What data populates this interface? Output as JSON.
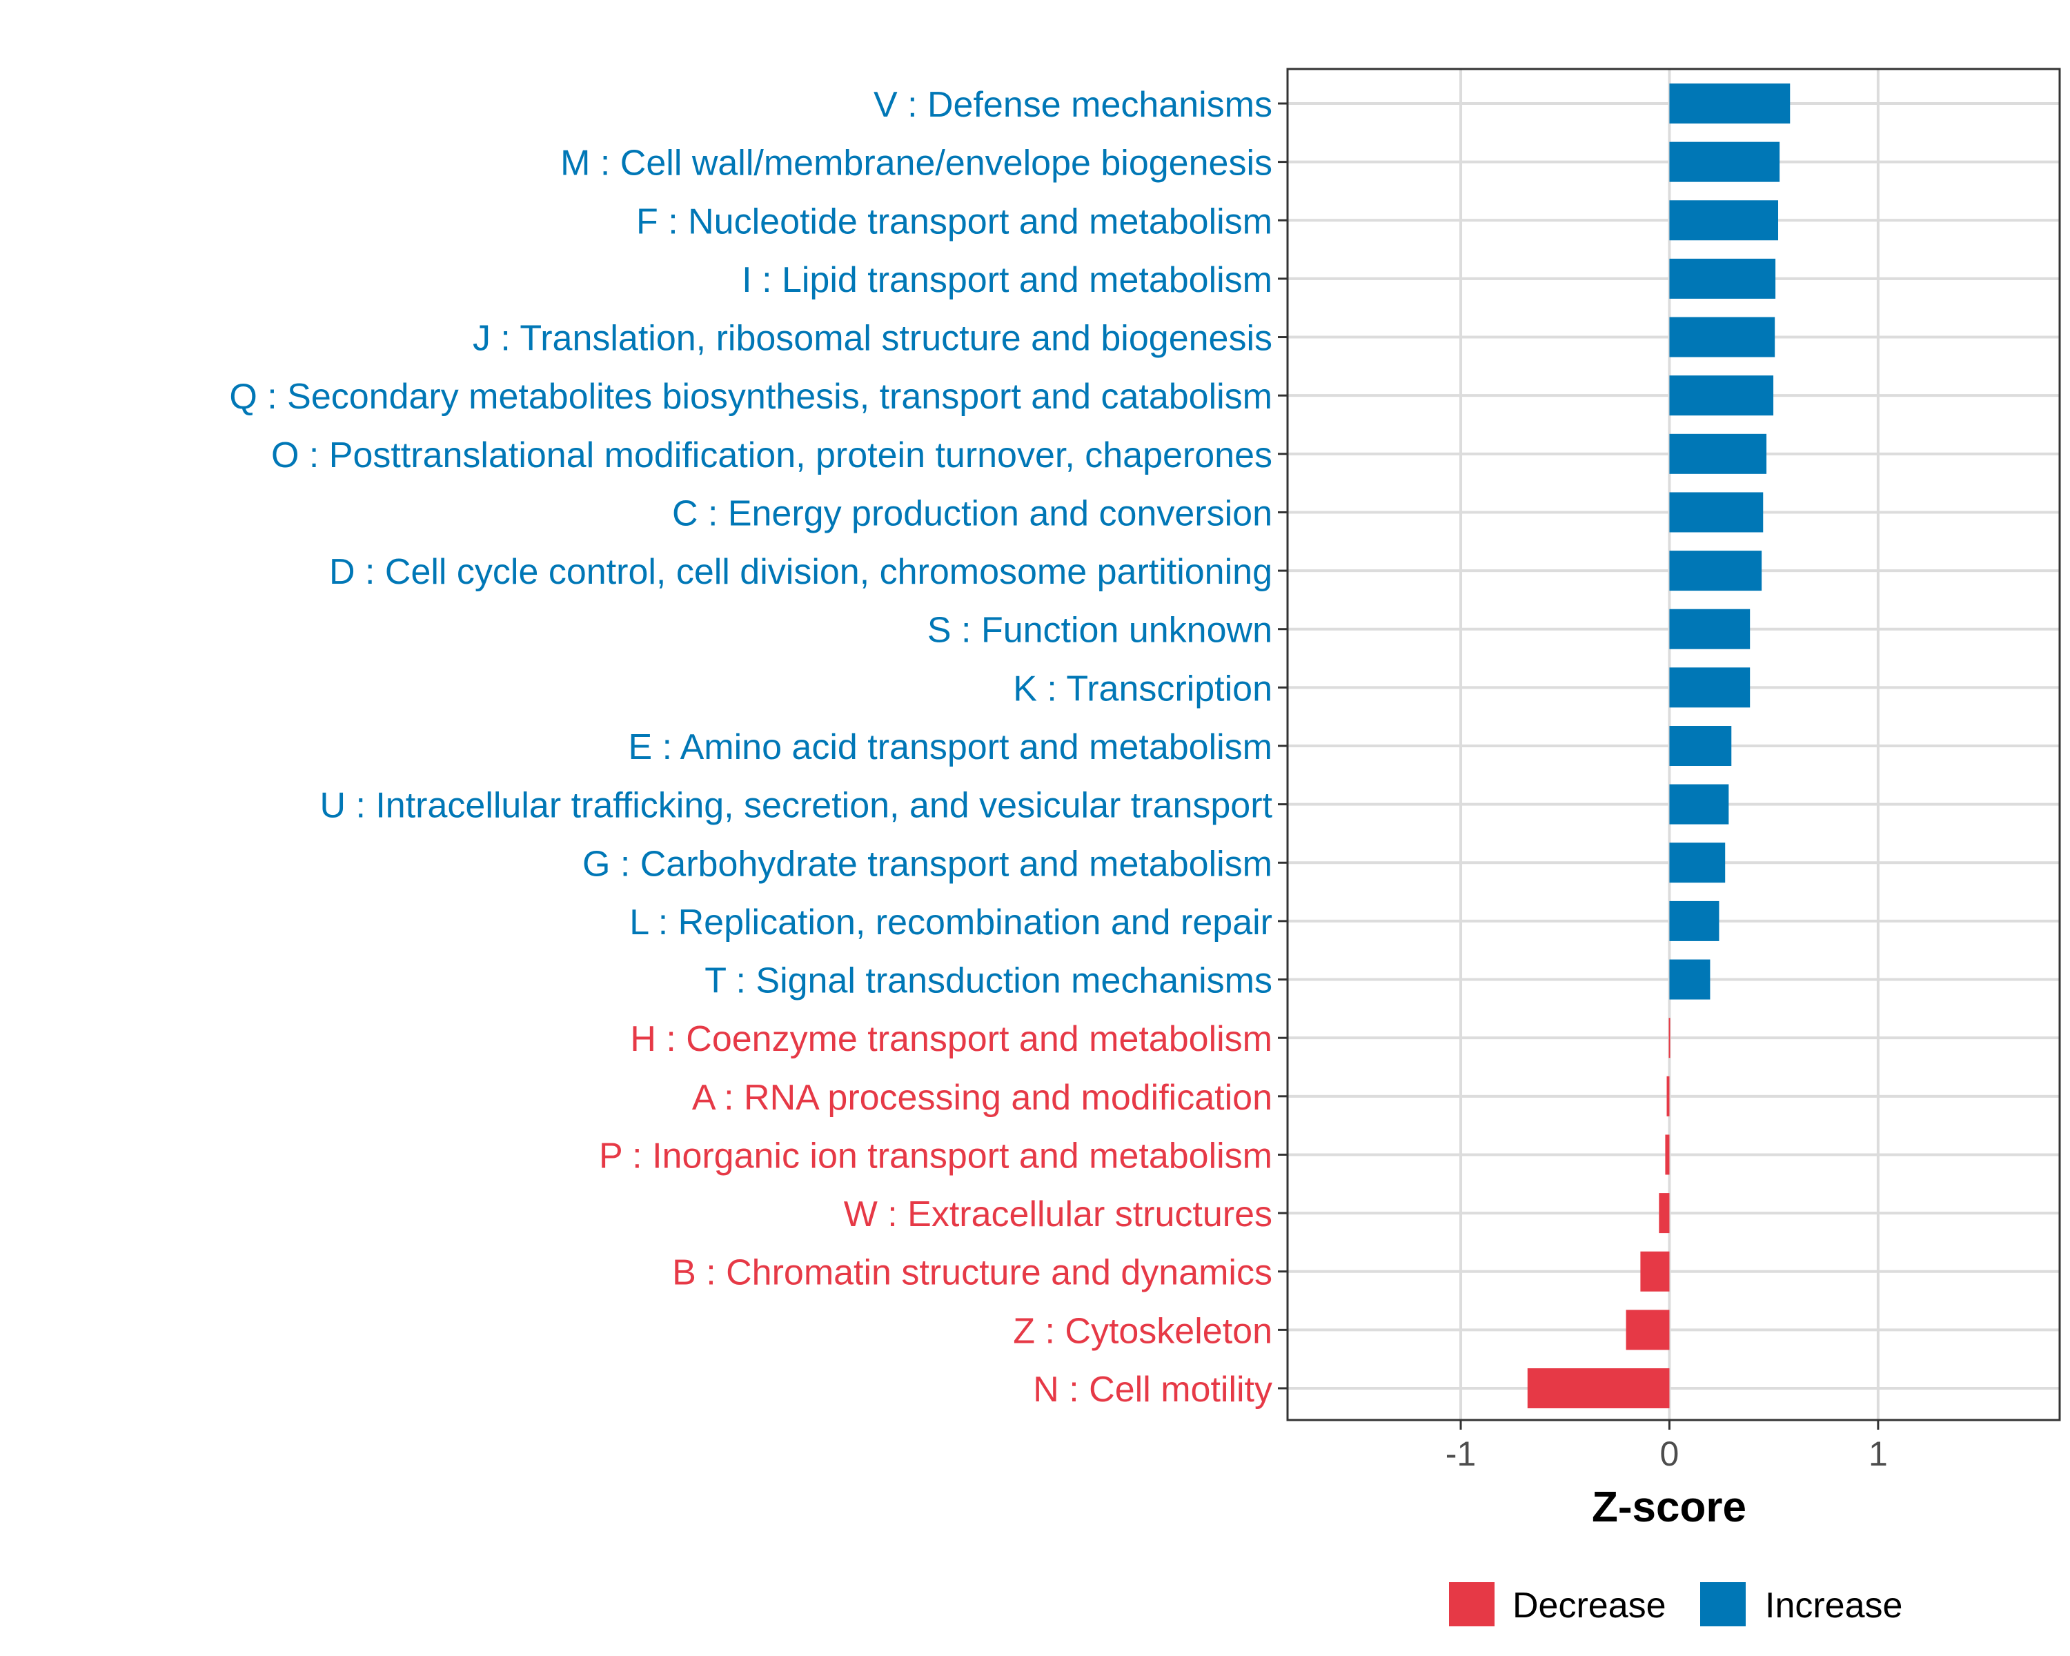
{
  "chart_data": {
    "type": "bar",
    "orientation": "horizontal",
    "title": "",
    "xlabel": "Z-score",
    "ylabel": "",
    "xlim": [
      -1.83,
      1.87
    ],
    "xticks": [
      -1,
      0,
      1
    ],
    "xtick_labels": [
      "-1",
      "0",
      "1"
    ],
    "grid": true,
    "legend": {
      "position": "bottom",
      "entries": [
        {
          "label": "Decrease",
          "color": "#E63946"
        },
        {
          "label": "Increase",
          "color": "#0077B6"
        }
      ]
    },
    "categories": [
      "V : Defense mechanisms",
      "M : Cell wall/membrane/envelope biogenesis",
      "F : Nucleotide transport and metabolism",
      "I : Lipid transport and metabolism",
      "J : Translation, ribosomal structure and biogenesis",
      "Q : Secondary metabolites biosynthesis, transport and catabolism",
      "O : Posttranslational modification, protein turnover, chaperones",
      "C : Energy production and conversion",
      "D : Cell cycle control, cell division, chromosome partitioning",
      "S : Function unknown",
      "K : Transcription",
      "E : Amino acid transport and metabolism",
      "U : Intracellular trafficking, secretion, and vesicular transport",
      "G : Carbohydrate transport and metabolism",
      "L : Replication, recombination and repair",
      "T : Signal transduction mechanisms",
      "H : Coenzyme transport and metabolism",
      "A : RNA processing and modification",
      "P : Inorganic ion transport and metabolism",
      "W : Extracellular structures",
      "B : Chromatin structure and dynamics",
      "Z : Cytoskeleton",
      "N : Cell motility"
    ],
    "values": [
      0.578,
      0.528,
      0.521,
      0.508,
      0.505,
      0.498,
      0.465,
      0.449,
      0.442,
      0.386,
      0.386,
      0.297,
      0.284,
      0.267,
      0.238,
      0.195,
      -0.003,
      -0.013,
      -0.02,
      -0.05,
      -0.139,
      -0.208,
      -0.68
    ],
    "colors": {
      "increase": "#0077B6",
      "decrease": "#E63946"
    }
  }
}
